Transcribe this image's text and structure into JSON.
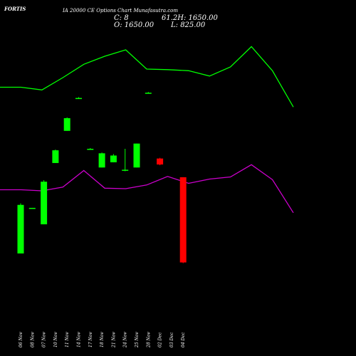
{
  "header": {
    "symbol": "FORTIS",
    "title_text": "IA 20000 CE Options Chart Munafasutra.com",
    "close_text": "C: 8",
    "open_text": "O: 1650.00",
    "overlap_text": "61.2H: 1650.00",
    "low_text": "L: 825.00"
  },
  "colors": {
    "background": "#000000",
    "up": "#00ff00",
    "down": "#ff0000",
    "line_upper": "#00ff00",
    "line_lower": "#cc00cc",
    "text": "#ffffff"
  },
  "chart_data": {
    "type": "candlestick",
    "categories": [
      "06 Nov",
      "08 Nov",
      "07 Nov",
      "10 Nov",
      "11 Nov",
      "14 Nov",
      "17 Nov",
      "18 Nov",
      "21 Nov",
      "24 Nov",
      "25 Nov",
      "28 Nov",
      "02 Dec",
      "03 Dec",
      "04 Dec"
    ],
    "candles": [
      {
        "date": "06 Nov",
        "open": 40,
        "high": 107,
        "low": 40,
        "close": 105,
        "dir": "up"
      },
      {
        "date": "08 Nov",
        "open": 101,
        "high": 101,
        "low": 100,
        "close": 101,
        "dir": "up"
      },
      {
        "date": "07 Nov",
        "open": 79,
        "high": 138,
        "low": 79,
        "close": 136,
        "dir": "up"
      },
      {
        "date": "10 Nov",
        "open": 161,
        "high": 179,
        "low": 161,
        "close": 178,
        "dir": "up"
      },
      {
        "date": "11 Nov",
        "open": 204,
        "high": 222,
        "low": 204,
        "close": 221,
        "dir": "up"
      },
      {
        "date": "14 Nov",
        "open": 248,
        "high": 249,
        "low": 247,
        "close": 248,
        "dir": "up"
      },
      {
        "date": "17 Nov",
        "open": 180,
        "high": 181,
        "low": 179,
        "close": 180,
        "dir": "up"
      },
      {
        "date": "18 Nov",
        "open": 155,
        "high": 175,
        "low": 155,
        "close": 174,
        "dir": "up"
      },
      {
        "date": "21 Nov",
        "open": 162,
        "high": 173,
        "low": 162,
        "close": 171,
        "dir": "up"
      },
      {
        "date": "24 Nov",
        "open": 151,
        "high": 180,
        "low": 150,
        "close": 152,
        "dir": "up"
      },
      {
        "date": "25 Nov",
        "open": 155,
        "high": 187,
        "low": 155,
        "close": 187,
        "dir": "up"
      },
      {
        "date": "28 Nov",
        "open": 255,
        "high": 256,
        "low": 254,
        "close": 255,
        "dir": "up"
      },
      {
        "date": "02 Dec",
        "open": 167,
        "high": 168,
        "low": 158,
        "close": 159,
        "dir": "down"
      },
      {
        "date": "03 Dec",
        "open": 0,
        "high": 0,
        "low": 0,
        "close": 0,
        "dir": "none"
      },
      {
        "date": "04 Dec",
        "open": 142,
        "high": 142,
        "low": 27,
        "close": 28,
        "dir": "down"
      }
    ],
    "series": [
      {
        "values": [
          490,
          490,
          485,
          508,
          533,
          548,
          560,
          524,
          523,
          521,
          511,
          528,
          566,
          521,
          453
        ]
      },
      {
        "values": [
          298,
          298,
          296,
          303,
          334,
          301,
          300,
          307,
          323,
          310,
          318,
          322,
          345,
          317,
          255
        ]
      }
    ],
    "ylim": [
      0,
      600
    ]
  }
}
